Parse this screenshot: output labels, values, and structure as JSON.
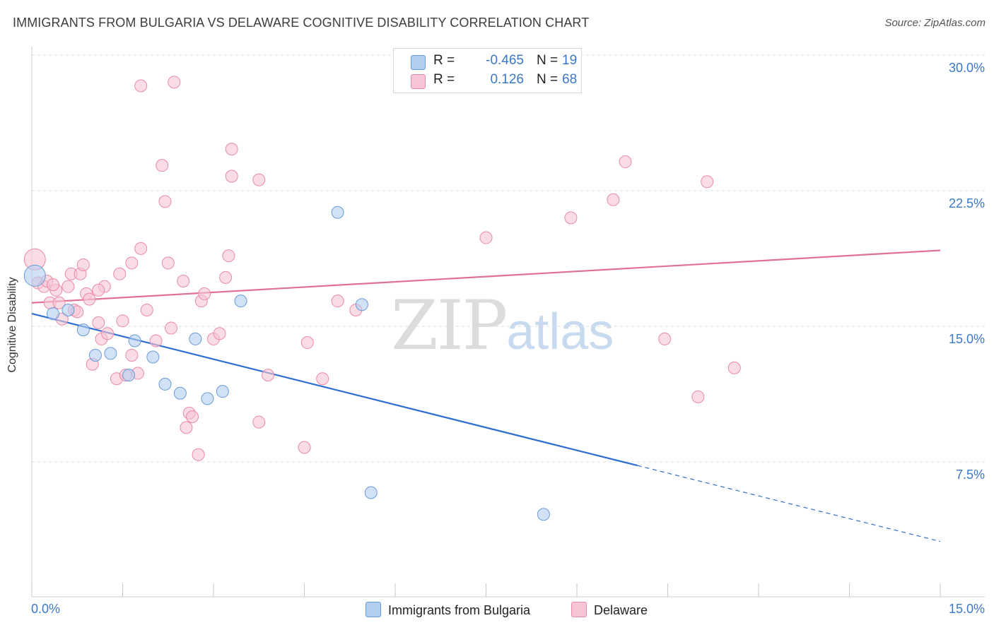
{
  "title": "IMMIGRANTS FROM BULGARIA VS DELAWARE COGNITIVE DISABILITY CORRELATION CHART",
  "source": "Source: ZipAtlas.com",
  "watermark": {
    "zip": "ZIP",
    "atlas": "atlas"
  },
  "legend": {
    "r_label": "R =",
    "n_label": "N =",
    "rows": [
      {
        "r": "-0.465",
        "n": "19"
      },
      {
        "r": "0.126",
        "n": "68"
      }
    ]
  },
  "colors": {
    "blue_fill": "#b3cdf0",
    "blue_stroke": "#6a9bd8",
    "blue_line": "#2f6fd0",
    "pink_fill": "#f7c5d4",
    "pink_stroke": "#e88aa8",
    "pink_line": "#e07098",
    "tick_text": "#3a78c8",
    "grid": "#dddddd"
  },
  "chart_data": {
    "type": "scatter",
    "title": "IMMIGRANTS FROM BULGARIA VS DELAWARE COGNITIVE DISABILITY CORRELATION CHART",
    "xlabel": "",
    "ylabel": "Cognitive Disability",
    "xlim": [
      0,
      15
    ],
    "ylim": [
      0,
      31
    ],
    "x_tick_labels": [
      "0.0%",
      "15.0%"
    ],
    "y_ticks": [
      7.5,
      15.0,
      22.5,
      30.0
    ],
    "y_tick_labels": [
      "7.5%",
      "15.0%",
      "22.5%",
      "30.0%"
    ],
    "grid": "horizontal dashed",
    "legend_placement": "top-center",
    "series": [
      {
        "name": "Immigrants from Bulgaria",
        "color": "#b3cdf0",
        "r": -0.465,
        "n": 19,
        "points": [
          [
            0.05,
            17.8
          ],
          [
            0.35,
            15.7
          ],
          [
            0.6,
            15.9
          ],
          [
            0.85,
            14.8
          ],
          [
            1.05,
            13.4
          ],
          [
            1.3,
            13.5
          ],
          [
            1.6,
            12.3
          ],
          [
            1.7,
            14.2
          ],
          [
            2.0,
            13.3
          ],
          [
            2.2,
            11.8
          ],
          [
            2.45,
            11.3
          ],
          [
            2.7,
            14.3
          ],
          [
            2.9,
            11.0
          ],
          [
            3.15,
            11.4
          ],
          [
            3.45,
            16.4
          ],
          [
            5.05,
            21.3
          ],
          [
            5.45,
            16.2
          ],
          [
            5.6,
            5.8
          ],
          [
            8.45,
            4.6
          ]
        ],
        "trend": {
          "x0": 0,
          "y0": 15.7,
          "x1": 10.0,
          "y1": 7.3,
          "dashed_to_x": 15,
          "dashed_to_y": 3.1
        }
      },
      {
        "name": "Delaware",
        "color": "#f7c5d4",
        "r": 0.126,
        "n": 68,
        "points": [
          [
            0.05,
            18.7
          ],
          [
            0.1,
            17.4
          ],
          [
            0.2,
            17.2
          ],
          [
            0.25,
            17.5
          ],
          [
            0.3,
            16.3
          ],
          [
            0.4,
            17.0
          ],
          [
            0.45,
            16.3
          ],
          [
            0.5,
            15.4
          ],
          [
            0.6,
            17.2
          ],
          [
            0.65,
            17.9
          ],
          [
            0.7,
            15.9
          ],
          [
            0.75,
            15.8
          ],
          [
            0.8,
            17.9
          ],
          [
            0.85,
            18.4
          ],
          [
            0.9,
            16.8
          ],
          [
            0.95,
            16.5
          ],
          [
            1.0,
            12.9
          ],
          [
            1.1,
            15.2
          ],
          [
            1.15,
            14.3
          ],
          [
            1.2,
            17.2
          ],
          [
            1.25,
            14.6
          ],
          [
            1.4,
            12.1
          ],
          [
            1.45,
            17.9
          ],
          [
            1.5,
            15.3
          ],
          [
            1.55,
            12.3
          ],
          [
            1.65,
            18.5
          ],
          [
            1.65,
            13.4
          ],
          [
            1.75,
            12.4
          ],
          [
            1.8,
            19.3
          ],
          [
            1.9,
            15.9
          ],
          [
            2.05,
            14.2
          ],
          [
            2.15,
            23.9
          ],
          [
            2.2,
            21.9
          ],
          [
            2.25,
            18.5
          ],
          [
            2.3,
            14.9
          ],
          [
            2.5,
            17.5
          ],
          [
            2.55,
            9.4
          ],
          [
            2.6,
            10.2
          ],
          [
            2.65,
            10.0
          ],
          [
            2.75,
            7.9
          ],
          [
            2.8,
            16.4
          ],
          [
            2.85,
            16.8
          ],
          [
            3.0,
            14.3
          ],
          [
            3.1,
            14.6
          ],
          [
            3.2,
            17.7
          ],
          [
            3.25,
            18.9
          ],
          [
            3.3,
            24.8
          ],
          [
            3.3,
            23.3
          ],
          [
            3.75,
            23.1
          ],
          [
            3.75,
            9.7
          ],
          [
            3.9,
            12.3
          ],
          [
            4.5,
            8.3
          ],
          [
            4.55,
            14.1
          ],
          [
            4.8,
            12.1
          ],
          [
            5.05,
            16.4
          ],
          [
            5.35,
            15.9
          ],
          [
            7.5,
            19.9
          ],
          [
            8.9,
            21.0
          ],
          [
            9.6,
            22.0
          ],
          [
            9.8,
            24.1
          ],
          [
            10.45,
            14.3
          ],
          [
            11.0,
            11.1
          ],
          [
            11.15,
            23.0
          ],
          [
            11.6,
            12.7
          ],
          [
            1.8,
            28.3
          ],
          [
            2.35,
            28.5
          ],
          [
            0.35,
            17.3
          ],
          [
            1.1,
            17.0
          ]
        ],
        "trend": {
          "x0": 0,
          "y0": 16.3,
          "x1": 15,
          "y1": 19.2
        }
      }
    ]
  }
}
